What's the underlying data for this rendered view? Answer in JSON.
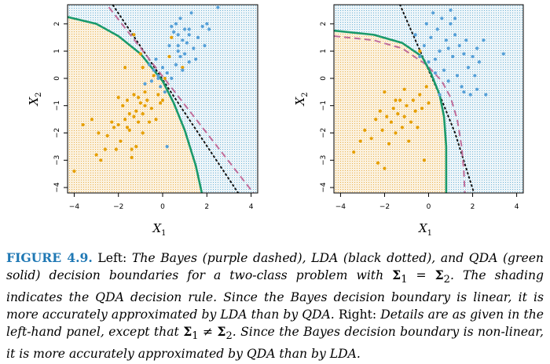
{
  "figure": {
    "label": "FIGURE 4.9.",
    "caption_parts": [
      {
        "t": "Left:",
        "s": "n"
      },
      {
        "t": " The Bayes (purple dashed), LDA (black dotted), and QDA (green solid) decision boundaries for a two-class problem with ",
        "s": "i"
      },
      {
        "t": "Σ",
        "s": "b"
      },
      {
        "t": "1",
        "s": "sub"
      },
      {
        "t": " = ",
        "s": "i"
      },
      {
        "t": "Σ",
        "s": "b"
      },
      {
        "t": "2",
        "s": "sub"
      },
      {
        "t": ". The shading indicates the QDA decision rule. Since the Bayes decision boundary is linear, it is more accurately approximated by LDA than by QDA.",
        "s": "i"
      },
      {
        "t": " Right:",
        "s": "n"
      },
      {
        "t": " Details are as given in the left-hand panel, except that ",
        "s": "i"
      },
      {
        "t": "Σ",
        "s": "b"
      },
      {
        "t": "1",
        "s": "sub"
      },
      {
        "t": " ≠ ",
        "s": "i"
      },
      {
        "t": "Σ",
        "s": "b"
      },
      {
        "t": "2",
        "s": "sub"
      },
      {
        "t": ". Since the Bayes decision boundary is non-linear, it is more accurately approximated by QDA than by LDA.",
        "s": "i"
      }
    ]
  },
  "colors": {
    "class_orange": "#e69f00",
    "class_blue": "#56a0d8",
    "bayes_purple": "#c06c9a",
    "lda_black": "#111111",
    "qda_green": "#1a9a6c",
    "shade_orange": "#f5d9a6",
    "shade_blue": "#cfe6f0"
  },
  "chart_data": [
    {
      "type": "scatter",
      "panel": "left",
      "xlabel": "X",
      "xlabel_sub": "1",
      "ylabel": "X",
      "ylabel_sub": "2",
      "xlim": [
        -4.3,
        4.3
      ],
      "ylim": [
        -4.2,
        2.7
      ],
      "xticks": [
        -4,
        -2,
        0,
        2,
        4
      ],
      "yticks": [
        -4,
        -3,
        -2,
        -1,
        0,
        1,
        2
      ],
      "boundaries": {
        "bayes_dashed": [
          [
            -3.0,
            3.2
          ],
          [
            4.2,
            -4.3
          ]
        ],
        "lda_dotted": [
          [
            -3.0,
            3.6
          ],
          [
            3.5,
            -4.3
          ]
        ],
        "qda_solid": [
          [
            -4.3,
            2.25
          ],
          [
            -3.0,
            2.0
          ],
          [
            -2.0,
            1.55
          ],
          [
            -1.0,
            0.9
          ],
          [
            0.0,
            -0.1
          ],
          [
            0.5,
            -0.9
          ],
          [
            1.0,
            -1.9
          ],
          [
            1.5,
            -3.2
          ],
          [
            1.8,
            -4.3
          ]
        ]
      },
      "series": [
        {
          "class": "orange",
          "points": [
            [
              -4.0,
              -3.4
            ],
            [
              -3.6,
              -1.7
            ],
            [
              -3.2,
              -1.5
            ],
            [
              -3.0,
              -2.8
            ],
            [
              -2.9,
              -2.0
            ],
            [
              -2.8,
              -3.0
            ],
            [
              -2.6,
              -2.6
            ],
            [
              -2.5,
              -2.1
            ],
            [
              -2.3,
              -1.6
            ],
            [
              -2.2,
              -1.8
            ],
            [
              -2.0,
              -1.7
            ],
            [
              -2.0,
              -0.7
            ],
            [
              -1.9,
              -2.3
            ],
            [
              -1.8,
              -1.0
            ],
            [
              -1.7,
              0.4
            ],
            [
              -1.7,
              -1.5
            ],
            [
              -1.6,
              -0.8
            ],
            [
              -1.5,
              -1.3
            ],
            [
              -1.5,
              -1.9
            ],
            [
              -1.4,
              -2.6
            ],
            [
              -1.4,
              -2.9
            ],
            [
              -1.3,
              -0.6
            ],
            [
              -1.3,
              -1.4
            ],
            [
              -1.2,
              -1.2
            ],
            [
              -1.2,
              -2.5
            ],
            [
              -1.1,
              -0.7
            ],
            [
              -1.1,
              -1.6
            ],
            [
              -1.0,
              0.9
            ],
            [
              -1.0,
              -0.9
            ],
            [
              -0.9,
              -1.3
            ],
            [
              -0.9,
              -2.0
            ],
            [
              -0.8,
              -1.0
            ],
            [
              -0.8,
              -0.5
            ],
            [
              -0.7,
              -0.8
            ],
            [
              -0.6,
              -1.6
            ],
            [
              -0.5,
              -1.1
            ],
            [
              -0.4,
              0.1
            ],
            [
              -0.3,
              -1.5
            ],
            [
              -0.2,
              -0.6
            ],
            [
              -0.1,
              -0.9
            ],
            [
              0.0,
              -0.8
            ],
            [
              0.1,
              0.0
            ],
            [
              0.3,
              0.8
            ],
            [
              0.4,
              1.5
            ],
            [
              -1.3,
              1.6
            ],
            [
              -0.9,
              0.4
            ],
            [
              -2.1,
              -2.6
            ],
            [
              0.9,
              0.4
            ],
            [
              -1.6,
              -1.8
            ]
          ]
        },
        {
          "class": "blue",
          "points": [
            [
              -0.8,
              -0.2
            ],
            [
              -0.6,
              0.5
            ],
            [
              -0.5,
              -0.1
            ],
            [
              -0.4,
              0.3
            ],
            [
              -0.3,
              0.7
            ],
            [
              -0.2,
              0.1
            ],
            [
              -0.1,
              -0.3
            ],
            [
              0.0,
              0.4
            ],
            [
              0.1,
              -0.5
            ],
            [
              0.2,
              0.2
            ],
            [
              0.3,
              1.2
            ],
            [
              0.4,
              0.0
            ],
            [
              0.5,
              1.7
            ],
            [
              0.6,
              0.5
            ],
            [
              0.7,
              1.0
            ],
            [
              0.7,
              1.6
            ],
            [
              0.8,
              2.2
            ],
            [
              0.8,
              0.8
            ],
            [
              0.9,
              1.4
            ],
            [
              0.9,
              0.3
            ],
            [
              1.0,
              1.8
            ],
            [
              1.0,
              0.9
            ],
            [
              1.1,
              1.3
            ],
            [
              1.2,
              1.6
            ],
            [
              1.2,
              0.6
            ],
            [
              1.3,
              2.4
            ],
            [
              1.4,
              1.1
            ],
            [
              1.5,
              0.7
            ],
            [
              1.6,
              1.5
            ],
            [
              1.8,
              1.9
            ],
            [
              1.9,
              1.2
            ],
            [
              2.0,
              2.0
            ],
            [
              2.1,
              1.8
            ],
            [
              2.5,
              2.6
            ],
            [
              0.4,
              1.9
            ],
            [
              0.6,
              2.0
            ],
            [
              -0.2,
              0.0
            ],
            [
              0.2,
              -2.5
            ],
            [
              0.7,
              1.2
            ],
            [
              1.2,
              1.8
            ]
          ]
        }
      ]
    },
    {
      "type": "scatter",
      "panel": "right",
      "xlabel": "X",
      "xlabel_sub": "1",
      "ylabel": "X",
      "ylabel_sub": "2",
      "xlim": [
        -4.3,
        4.3
      ],
      "ylim": [
        -4.2,
        2.7
      ],
      "xticks": [
        -4,
        -2,
        0,
        2,
        4
      ],
      "yticks": [
        -4,
        -3,
        -2,
        -1,
        0,
        1,
        2
      ],
      "boundaries": {
        "bayes_dashed": [
          [
            -4.3,
            1.55
          ],
          [
            -2.5,
            1.4
          ],
          [
            -1.2,
            1.1
          ],
          [
            -0.1,
            0.5
          ],
          [
            0.6,
            -0.1
          ],
          [
            1.0,
            -0.7
          ],
          [
            1.3,
            -1.5
          ],
          [
            1.5,
            -2.5
          ],
          [
            1.6,
            -3.4
          ],
          [
            1.65,
            -4.3
          ]
        ],
        "lda_dotted": [
          [
            -1.3,
            2.7
          ],
          [
            -0.6,
            1.4
          ],
          [
            0.0,
            0.3
          ],
          [
            0.6,
            -0.8
          ],
          [
            1.2,
            -2.0
          ],
          [
            2.1,
            -4.3
          ]
        ],
        "qda_solid": [
          [
            -4.3,
            1.75
          ],
          [
            -2.5,
            1.6
          ],
          [
            -1.2,
            1.3
          ],
          [
            -0.3,
            0.8
          ],
          [
            0.1,
            0.2
          ],
          [
            0.5,
            -0.6
          ],
          [
            0.7,
            -1.4
          ],
          [
            0.8,
            -2.5
          ],
          [
            0.8,
            -4.3
          ]
        ]
      },
      "series": [
        {
          "class": "orange",
          "points": [
            [
              -3.4,
              -2.7
            ],
            [
              -3.1,
              -2.3
            ],
            [
              -2.9,
              -1.9
            ],
            [
              -2.6,
              -2.2
            ],
            [
              -2.4,
              -1.5
            ],
            [
              -2.3,
              -3.1
            ],
            [
              -2.2,
              -1.2
            ],
            [
              -2.1,
              -1.9
            ],
            [
              -2.0,
              -3.3
            ],
            [
              -1.9,
              -1.4
            ],
            [
              -1.8,
              -2.4
            ],
            [
              -1.7,
              -1.6
            ],
            [
              -1.6,
              -1.1
            ],
            [
              -1.5,
              -2.0
            ],
            [
              -1.4,
              -1.3
            ],
            [
              -1.3,
              -0.8
            ],
            [
              -1.2,
              -1.8
            ],
            [
              -1.1,
              -1.4
            ],
            [
              -1.0,
              -1.0
            ],
            [
              -0.9,
              -2.3
            ],
            [
              -0.8,
              -1.6
            ],
            [
              -0.7,
              -0.8
            ],
            [
              -0.6,
              -1.2
            ],
            [
              -0.5,
              -1.8
            ],
            [
              -0.4,
              -0.6
            ],
            [
              -0.3,
              -1.1
            ],
            [
              -0.2,
              -3.0
            ],
            [
              -0.1,
              -0.3
            ],
            [
              0.0,
              -0.9
            ],
            [
              -1.1,
              -0.4
            ],
            [
              -0.4,
              1.0
            ],
            [
              -1.5,
              -0.8
            ],
            [
              -2.0,
              -0.5
            ]
          ]
        },
        {
          "class": "blue",
          "points": [
            [
              -0.6,
              1.6
            ],
            [
              -0.4,
              0.8
            ],
            [
              -0.2,
              1.2
            ],
            [
              -0.1,
              2.0
            ],
            [
              0.0,
              0.6
            ],
            [
              0.1,
              1.5
            ],
            [
              0.2,
              2.4
            ],
            [
              0.3,
              0.2
            ],
            [
              0.4,
              1.8
            ],
            [
              0.5,
              1.0
            ],
            [
              0.6,
              2.2
            ],
            [
              0.7,
              0.3
            ],
            [
              0.8,
              1.4
            ],
            [
              0.9,
              -0.1
            ],
            [
              1.0,
              2.0
            ],
            [
              1.1,
              0.8
            ],
            [
              1.2,
              1.6
            ],
            [
              1.3,
              0.1
            ],
            [
              1.4,
              1.2
            ],
            [
              1.5,
              -0.3
            ],
            [
              1.6,
              0.9
            ],
            [
              1.7,
              1.4
            ],
            [
              1.8,
              0.4
            ],
            [
              1.9,
              -0.6
            ],
            [
              2.0,
              0.8
            ],
            [
              2.1,
              0.1
            ],
            [
              2.2,
              -0.4
            ],
            [
              2.3,
              0.6
            ],
            [
              2.5,
              1.4
            ],
            [
              2.6,
              -0.6
            ],
            [
              3.4,
              0.9
            ],
            [
              1.0,
              2.5
            ],
            [
              1.2,
              2.2
            ],
            [
              0.5,
              -0.6
            ],
            [
              0.9,
              1.1
            ],
            [
              2.2,
              1.1
            ],
            [
              1.6,
              -0.5
            ],
            [
              0.3,
              0.7
            ]
          ]
        }
      ]
    }
  ]
}
